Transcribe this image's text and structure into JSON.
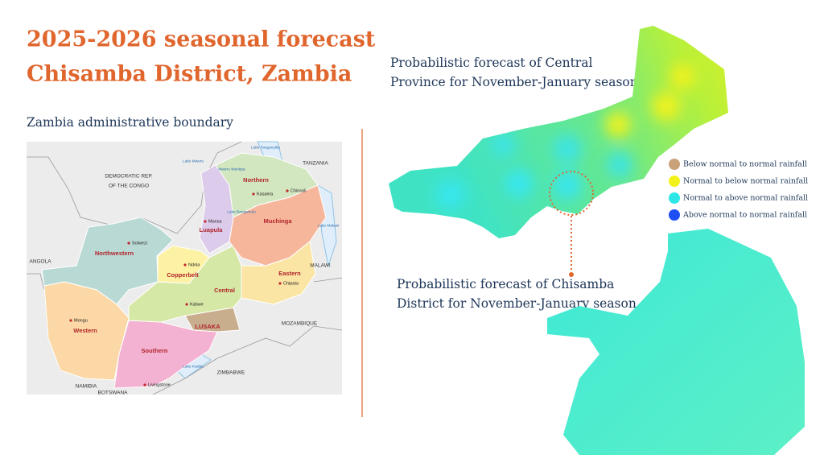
{
  "header": {
    "title_lines": [
      "2025-2026 seasonal forecast",
      "Chisamba District, Zambia"
    ]
  },
  "left": {
    "caption": "Zambia administrative boundary",
    "map_labels": {
      "countries": [
        "DEMOCRATIC REP.",
        "OF THE CONGO",
        "TANZANIA",
        "ANGOLA",
        "MALAWI",
        "MOZAMBIQUE",
        "ZIMBABWE",
        "NAMIBIA",
        "BOTSWANA"
      ],
      "provinces": [
        "Northern",
        "Luapula",
        "Muchinga",
        "Northwestern",
        "Copperbelt",
        "Central",
        "Eastern",
        "LUSAKA",
        "Southern",
        "Western"
      ],
      "cities": [
        "Kasama",
        "Chinsali",
        "Mansa",
        "Solwezi",
        "Ndola",
        "Chipata",
        "Kabwe",
        "Mongu",
        "Livingstone"
      ],
      "lakes": [
        "Lake Mweru",
        "Lake Tanganyika",
        "Lake Bangweulu",
        "Lake Kariba",
        "Lake Malawi",
        "Mweru Wantipa"
      ]
    }
  },
  "right": {
    "province_caption_lines": [
      "Probabilistic forecast of Central",
      "Province for November-January season"
    ],
    "district_caption_lines": [
      "Probabilistic forecast of Chisamba",
      "District for November-January season"
    ],
    "legend": [
      {
        "label": "Below normal to normal rainfall",
        "color": "#c9a27a"
      },
      {
        "label": "Normal to below normal rainfall",
        "color": "#f2f21a"
      },
      {
        "label": "Normal to above normal rainfall",
        "color": "#2ee6e6"
      },
      {
        "label": "Above normal to normal rainfall",
        "color": "#1d4ff5"
      }
    ]
  }
}
